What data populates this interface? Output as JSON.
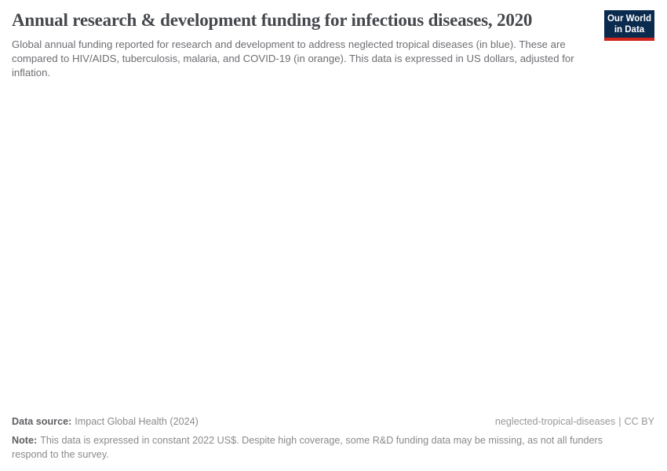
{
  "header": {
    "title": "Annual research & development funding for infectious diseases, 2020",
    "subtitle": "Global annual funding reported for research and development to address neglected tropical diseases (in blue). These are compared to HIV/AIDS, tuberculosis, malaria, and COVID-19 (in orange). This data is expressed in US dollars, adjusted for inflation."
  },
  "logo": {
    "line1": "Our World",
    "line2": "in Data",
    "bg_color": "#0a2a4e",
    "bar_color": "#d0241c",
    "text_color": "#ffffff"
  },
  "chart_data": {
    "type": "empty",
    "title": "Annual research & development funding for infectious diseases, 2020",
    "series": [],
    "series_color_hints": {
      "neglected tropical diseases": "blue",
      "HIV/AIDS, tuberculosis, malaria, and COVID-19": "orange"
    },
    "plot_area_note": "Plot area is blank in the screenshot; no axes, tick labels, gridlines, legend, or data points are rendered."
  },
  "footer": {
    "datasource_label": "Data source:",
    "datasource_value": "Impact Global Health (2024)",
    "license_slug": "neglected-tropical-diseases",
    "license_separator": "|",
    "license_name": "CC BY",
    "note_label": "Note:",
    "note_text": "This data is expressed in constant 2022 US$. Despite high coverage, some R&D funding data may be missing, as not all funders respond to the survey."
  },
  "colors": {
    "title_text": "#46484d",
    "subtitle_text": "#6e6e73",
    "footer_text": "#8a8a8e",
    "footer_bold_text": "#5f5f63",
    "background": "#ffffff"
  }
}
